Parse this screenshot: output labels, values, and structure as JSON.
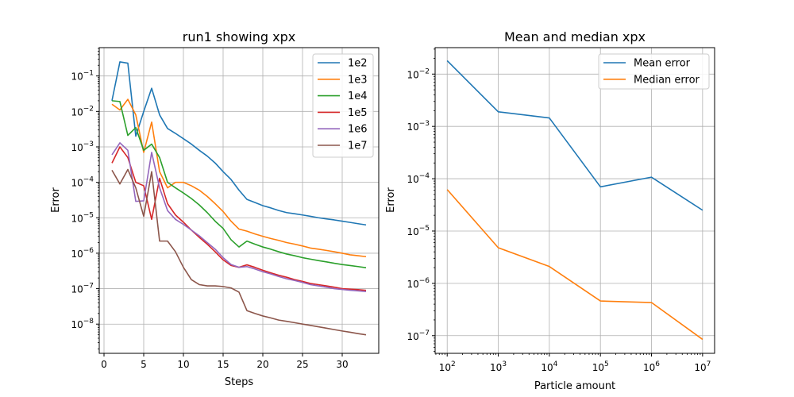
{
  "chart_data": [
    {
      "type": "line",
      "title": "run1 showing xpx",
      "xlabel": "Steps",
      "ylabel": "Error",
      "xscale": "linear",
      "yscale": "log",
      "xlim": [
        -0.6,
        34.6
      ],
      "ylim": [
        1.5e-09,
        0.63
      ],
      "xticks": [
        0,
        5,
        10,
        15,
        20,
        25,
        30
      ],
      "yticks": [
        1e-08,
        1e-07,
        1e-06,
        1e-05,
        0.0001,
        0.001,
        0.01,
        0.1
      ],
      "ytick_labels": [
        [
          "10",
          "−8"
        ],
        [
          "10",
          "−7"
        ],
        [
          "10",
          "−6"
        ],
        [
          "10",
          "−5"
        ],
        [
          "10",
          "−4"
        ],
        [
          "10",
          "−3"
        ],
        [
          "10",
          "−2"
        ],
        [
          "10",
          "−1"
        ]
      ],
      "grid": true,
      "legend_position": "upper right",
      "series": [
        {
          "name": "1e2",
          "color": "#1f77b4",
          "x": [
            1,
            2,
            3,
            4,
            5,
            6,
            7,
            8,
            9,
            10,
            11,
            12,
            13,
            14,
            15,
            16,
            17,
            18,
            19,
            20,
            21,
            22,
            23,
            24,
            25,
            26,
            27,
            28,
            29,
            30,
            31,
            32,
            33
          ],
          "y": [
            0.02,
            0.25,
            0.23,
            0.002,
            0.01,
            0.045,
            0.008,
            0.0033,
            0.0024,
            0.0017,
            0.0012,
            0.0008,
            0.00055,
            0.00035,
            0.0002,
            0.00012,
            6e-05,
            3.3e-05,
            2.7e-05,
            2.2e-05,
            1.9e-05,
            1.6e-05,
            1.4e-05,
            1.3e-05,
            1.2e-05,
            1.1e-05,
            1e-05,
            9.3e-06,
            8.7e-06,
            8e-06,
            7.4e-06,
            6.8e-06,
            6.3e-06
          ]
        },
        {
          "name": "1e3",
          "color": "#ff7f0e",
          "x": [
            1,
            2,
            3,
            4,
            5,
            6,
            7,
            8,
            9,
            10,
            11,
            12,
            13,
            14,
            15,
            16,
            17,
            18,
            19,
            20,
            21,
            22,
            23,
            24,
            25,
            26,
            27,
            28,
            29,
            30,
            31,
            32,
            33
          ],
          "y": [
            0.016,
            0.011,
            0.022,
            0.008,
            0.0007,
            0.005,
            0.0002,
            7e-05,
            0.0001,
            0.0001,
            8e-05,
            6e-05,
            4e-05,
            2.5e-05,
            1.5e-05,
            8e-06,
            4.8e-06,
            4.2e-06,
            3.5e-06,
            3e-06,
            2.6e-06,
            2.3e-06,
            2e-06,
            1.8e-06,
            1.6e-06,
            1.4e-06,
            1.3e-06,
            1.2e-06,
            1.1e-06,
            1e-06,
            9e-07,
            8.5e-07,
            8e-07
          ]
        },
        {
          "name": "1e4",
          "color": "#2ca02c",
          "x": [
            1,
            2,
            3,
            4,
            5,
            6,
            7,
            8,
            9,
            10,
            11,
            12,
            13,
            14,
            15,
            16,
            17,
            18,
            19,
            20,
            21,
            22,
            23,
            24,
            25,
            26,
            27,
            28,
            29,
            30,
            31,
            32,
            33
          ],
          "y": [
            0.02,
            0.019,
            0.0021,
            0.0035,
            0.0008,
            0.0012,
            0.0005,
            0.0001,
            7e-05,
            5e-05,
            3.5e-05,
            2.3e-05,
            1.4e-05,
            8e-06,
            5e-06,
            2.4e-06,
            1.5e-06,
            2.2e-06,
            1.8e-06,
            1.5e-06,
            1.3e-06,
            1.1e-06,
            9.5e-07,
            8.5e-07,
            7.5e-07,
            6.8e-07,
            6.2e-07,
            5.7e-07,
            5.2e-07,
            4.8e-07,
            4.5e-07,
            4.2e-07,
            3.9e-07
          ]
        },
        {
          "name": "1e5",
          "color": "#d62728",
          "x": [
            1,
            2,
            3,
            4,
            5,
            6,
            7,
            8,
            9,
            10,
            11,
            12,
            13,
            14,
            15,
            16,
            17,
            18,
            19,
            20,
            21,
            22,
            23,
            24,
            25,
            26,
            27,
            28,
            29,
            30,
            31,
            32,
            33
          ],
          "y": [
            0.00035,
            0.001,
            0.0005,
            0.0001,
            8e-05,
            9e-06,
            0.00013,
            2.5e-05,
            1.2e-05,
            7.5e-06,
            4.5e-06,
            2.8e-06,
            1.8e-06,
            1.1e-06,
            6.5e-07,
            4.5e-07,
            4e-07,
            4.7e-07,
            4e-07,
            3.3e-07,
            2.8e-07,
            2.4e-07,
            2.1e-07,
            1.8e-07,
            1.6e-07,
            1.4e-07,
            1.3e-07,
            1.2e-07,
            1.1e-07,
            1e-07,
            9.7e-08,
            9.4e-08,
            9e-08
          ]
        },
        {
          "name": "1e6",
          "color": "#9467bd",
          "x": [
            1,
            2,
            3,
            4,
            5,
            6,
            7,
            8,
            9,
            10,
            11,
            12,
            13,
            14,
            15,
            16,
            17,
            18,
            19,
            20,
            21,
            22,
            23,
            24,
            25,
            26,
            27,
            28,
            29,
            30,
            31,
            32,
            33
          ],
          "y": [
            0.0006,
            0.0013,
            0.0008,
            2.9e-05,
            3e-05,
            0.0007,
            7e-05,
            1.6e-05,
            9e-06,
            6.5e-06,
            4.5e-06,
            3.1e-06,
            2e-06,
            1.3e-06,
            7.5e-07,
            4.8e-07,
            4e-07,
            4.2e-07,
            3.6e-07,
            3e-07,
            2.6e-07,
            2.2e-07,
            1.9e-07,
            1.7e-07,
            1.5e-07,
            1.3e-07,
            1.2e-07,
            1.1e-07,
            1e-07,
            9.5e-08,
            9e-08,
            8.7e-08,
            8.3e-08
          ]
        },
        {
          "name": "1e7",
          "color": "#8c564b",
          "x": [
            1,
            2,
            3,
            4,
            5,
            6,
            7,
            8,
            9,
            10,
            11,
            12,
            13,
            14,
            15,
            16,
            17,
            18,
            19,
            20,
            21,
            22,
            23,
            24,
            25,
            26,
            27,
            28,
            29,
            30,
            31,
            32,
            33
          ],
          "y": [
            0.00022,
            9e-05,
            0.00023,
            7e-05,
            1.1e-05,
            0.0002,
            2.2e-06,
            2.2e-06,
            1.1e-06,
            4e-07,
            1.8e-07,
            1.3e-07,
            1.2e-07,
            1.2e-07,
            1.15e-07,
            1.05e-07,
            8e-08,
            2.4e-08,
            2e-08,
            1.7e-08,
            1.5e-08,
            1.3e-08,
            1.2e-08,
            1.1e-08,
            1e-08,
            9.2e-09,
            8.4e-09,
            7.7e-09,
            7e-09,
            6.4e-09,
            5.9e-09,
            5.4e-09,
            5e-09
          ]
        }
      ]
    },
    {
      "type": "line",
      "title": "Mean and median xpx",
      "xlabel": "Particle amount",
      "ylabel": "Error",
      "xscale": "log",
      "yscale": "log",
      "xlim": [
        58,
        17200000
      ],
      "ylim": [
        4.6e-08,
        0.032
      ],
      "xticks": [
        100,
        1000,
        10000,
        100000,
        1000000,
        10000000
      ],
      "xtick_labels": [
        [
          "10",
          "2"
        ],
        [
          "10",
          "3"
        ],
        [
          "10",
          "4"
        ],
        [
          "10",
          "5"
        ],
        [
          "10",
          "6"
        ],
        [
          "10",
          "7"
        ]
      ],
      "yticks": [
        1e-07,
        1e-06,
        1e-05,
        0.0001,
        0.001,
        0.01
      ],
      "ytick_labels": [
        [
          "10",
          "−7"
        ],
        [
          "10",
          "−6"
        ],
        [
          "10",
          "−5"
        ],
        [
          "10",
          "−4"
        ],
        [
          "10",
          "−3"
        ],
        [
          "10",
          "−2"
        ]
      ],
      "grid": true,
      "legend_position": "upper right",
      "series": [
        {
          "name": "Mean error",
          "color": "#1f77b4",
          "x": [
            100,
            1000,
            10000,
            100000,
            1000000,
            10000000
          ],
          "y": [
            0.018,
            0.0019,
            0.00145,
            7e-05,
            0.000107,
            2.5e-05
          ]
        },
        {
          "name": "Median error",
          "color": "#ff7f0e",
          "x": [
            100,
            1000,
            10000,
            100000,
            1000000,
            10000000
          ],
          "y": [
            6.2e-05,
            4.8e-06,
            2.1e-06,
            4.6e-07,
            4.3e-07,
            8.5e-08
          ]
        }
      ]
    }
  ]
}
